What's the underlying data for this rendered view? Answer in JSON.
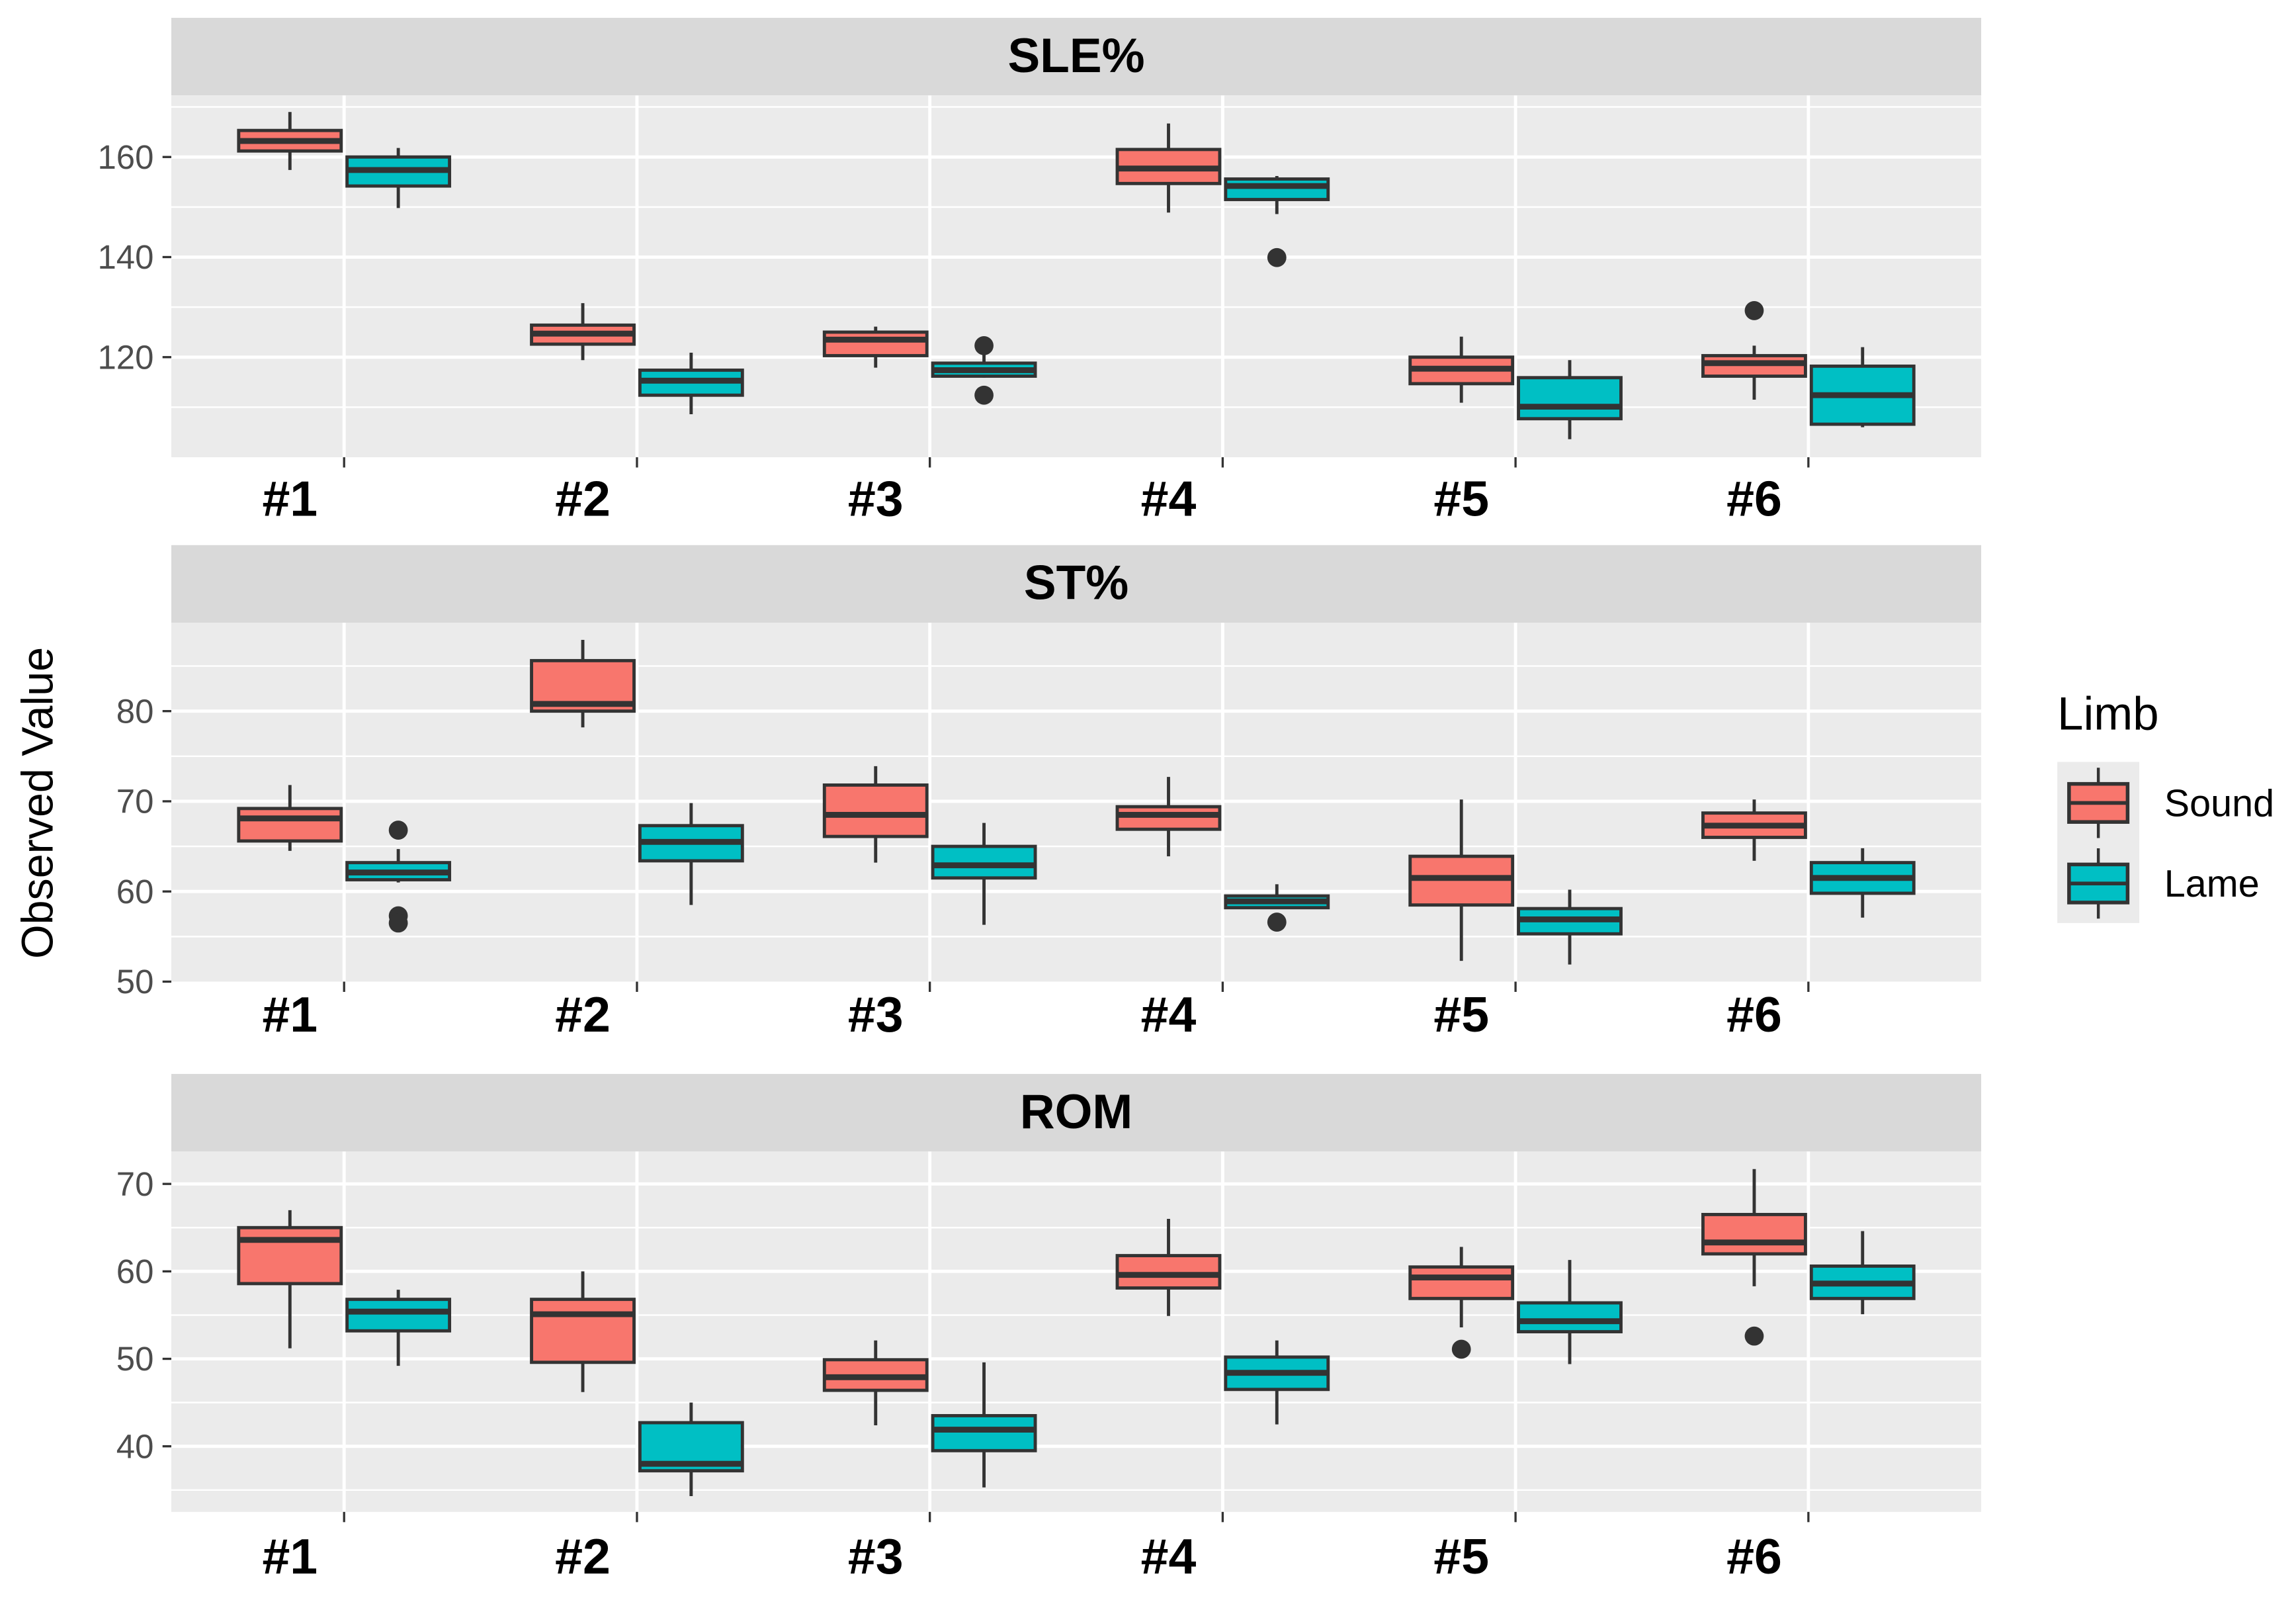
{
  "chart_data": {
    "type": "box",
    "ylabel": "Observed Value",
    "legend": {
      "title": "Limb",
      "position": "right",
      "entries": [
        {
          "name": "Sound",
          "color": "#F8766D"
        },
        {
          "name": "Lame",
          "color": "#00BFC4"
        }
      ]
    },
    "categories": [
      "#1",
      "#2",
      "#3",
      "#4",
      "#5",
      "#6"
    ],
    "panels": [
      {
        "title": "SLE%",
        "ylim": [
          100,
          172.3
        ],
        "yticks": [
          120,
          140,
          160
        ],
        "boxes": {
          "Sound": [
            [
              157.4,
              161.2,
              163.2,
              165.3,
              169,
              []
            ],
            [
              119.4,
              122.6,
              124.7,
              126.4,
              130.8,
              []
            ],
            [
              117.9,
              120.3,
              123.5,
              125,
              126.1,
              []
            ],
            [
              148.9,
              154.7,
              157.7,
              161.5,
              166.7,
              []
            ],
            [
              110.9,
              114.7,
              117.7,
              120,
              124.1,
              []
            ],
            [
              111.5,
              116.2,
              118.8,
              120.3,
              122.3,
              [
                129.3
              ]
            ]
          ],
          "Lame": [
            [
              149.8,
              154.2,
              157.4,
              160,
              161.8,
              []
            ],
            [
              108.6,
              112.4,
              115.3,
              117.4,
              120.9,
              []
            ],
            [
              115.9,
              116.2,
              117.4,
              118.8,
              121.2,
              [
                122.3,
                112.4
              ]
            ],
            [
              148.6,
              151.5,
              154.2,
              155.6,
              156.2,
              [
                139.9
              ]
            ],
            [
              103.6,
              107.7,
              110.1,
              115.9,
              119.4,
              []
            ],
            [
              106,
              106.6,
              112.4,
              118.2,
              122,
              []
            ]
          ]
        }
      },
      {
        "title": "ST%",
        "ylim": [
          50,
          89.8
        ],
        "yticks": [
          50,
          60,
          70,
          80
        ],
        "boxes": {
          "Sound": [
            [
              64.5,
              65.6,
              68.1,
              69.2,
              71.8,
              []
            ],
            [
              78.2,
              80,
              80.8,
              85.6,
              87.9,
              []
            ],
            [
              63.2,
              66.1,
              68.5,
              71.8,
              73.9,
              []
            ],
            [
              63.9,
              66.9,
              68.5,
              69.4,
              72.7,
              []
            ],
            [
              52.3,
              58.5,
              61.5,
              63.9,
              70.2,
              []
            ],
            [
              63.4,
              66,
              67.3,
              68.7,
              70.2,
              []
            ]
          ],
          "Lame": [
            [
              61,
              61.3,
              62.1,
              63.2,
              64.7,
              [
                66.8,
                57.3,
                56.5
              ]
            ],
            [
              58.5,
              63.4,
              65.5,
              67.3,
              69.8,
              []
            ],
            [
              56.3,
              61.5,
              62.9,
              65,
              67.6,
              []
            ],
            [
              58.1,
              58.2,
              58.9,
              59.5,
              60.8,
              [
                56.6
              ]
            ],
            [
              51.9,
              55.3,
              56.9,
              58.1,
              60.2,
              []
            ],
            [
              57.1,
              59.8,
              61.5,
              63.2,
              64.8,
              []
            ]
          ]
        }
      },
      {
        "title": "ROM",
        "ylim": [
          32.5,
          73.7
        ],
        "yticks": [
          40,
          50,
          60,
          70
        ],
        "boxes": {
          "Sound": [
            [
              51.2,
              58.6,
              63.6,
              65,
              67,
              []
            ],
            [
              46.2,
              49.6,
              55.1,
              56.8,
              60,
              []
            ],
            [
              42.4,
              46.4,
              47.9,
              49.9,
              52.1,
              []
            ],
            [
              54.9,
              58.1,
              59.6,
              61.8,
              66,
              []
            ],
            [
              53.6,
              56.9,
              59.3,
              60.5,
              62.8,
              [
                51.1
              ]
            ],
            [
              58.3,
              62,
              63.3,
              66.5,
              71.7,
              [
                52.6
              ]
            ]
          ],
          "Lame": [
            [
              49.2,
              53.2,
              55.4,
              56.8,
              57.9,
              []
            ],
            [
              34.3,
              37.2,
              38,
              42.7,
              45,
              []
            ],
            [
              35.3,
              39.5,
              41.9,
              43.5,
              49.6,
              []
            ],
            [
              42.5,
              46.5,
              48.4,
              50.2,
              52.1,
              []
            ],
            [
              49.4,
              53.1,
              54.3,
              56.4,
              61.3,
              []
            ],
            [
              55.1,
              56.9,
              58.6,
              60.6,
              64.6,
              []
            ]
          ]
        }
      }
    ]
  }
}
